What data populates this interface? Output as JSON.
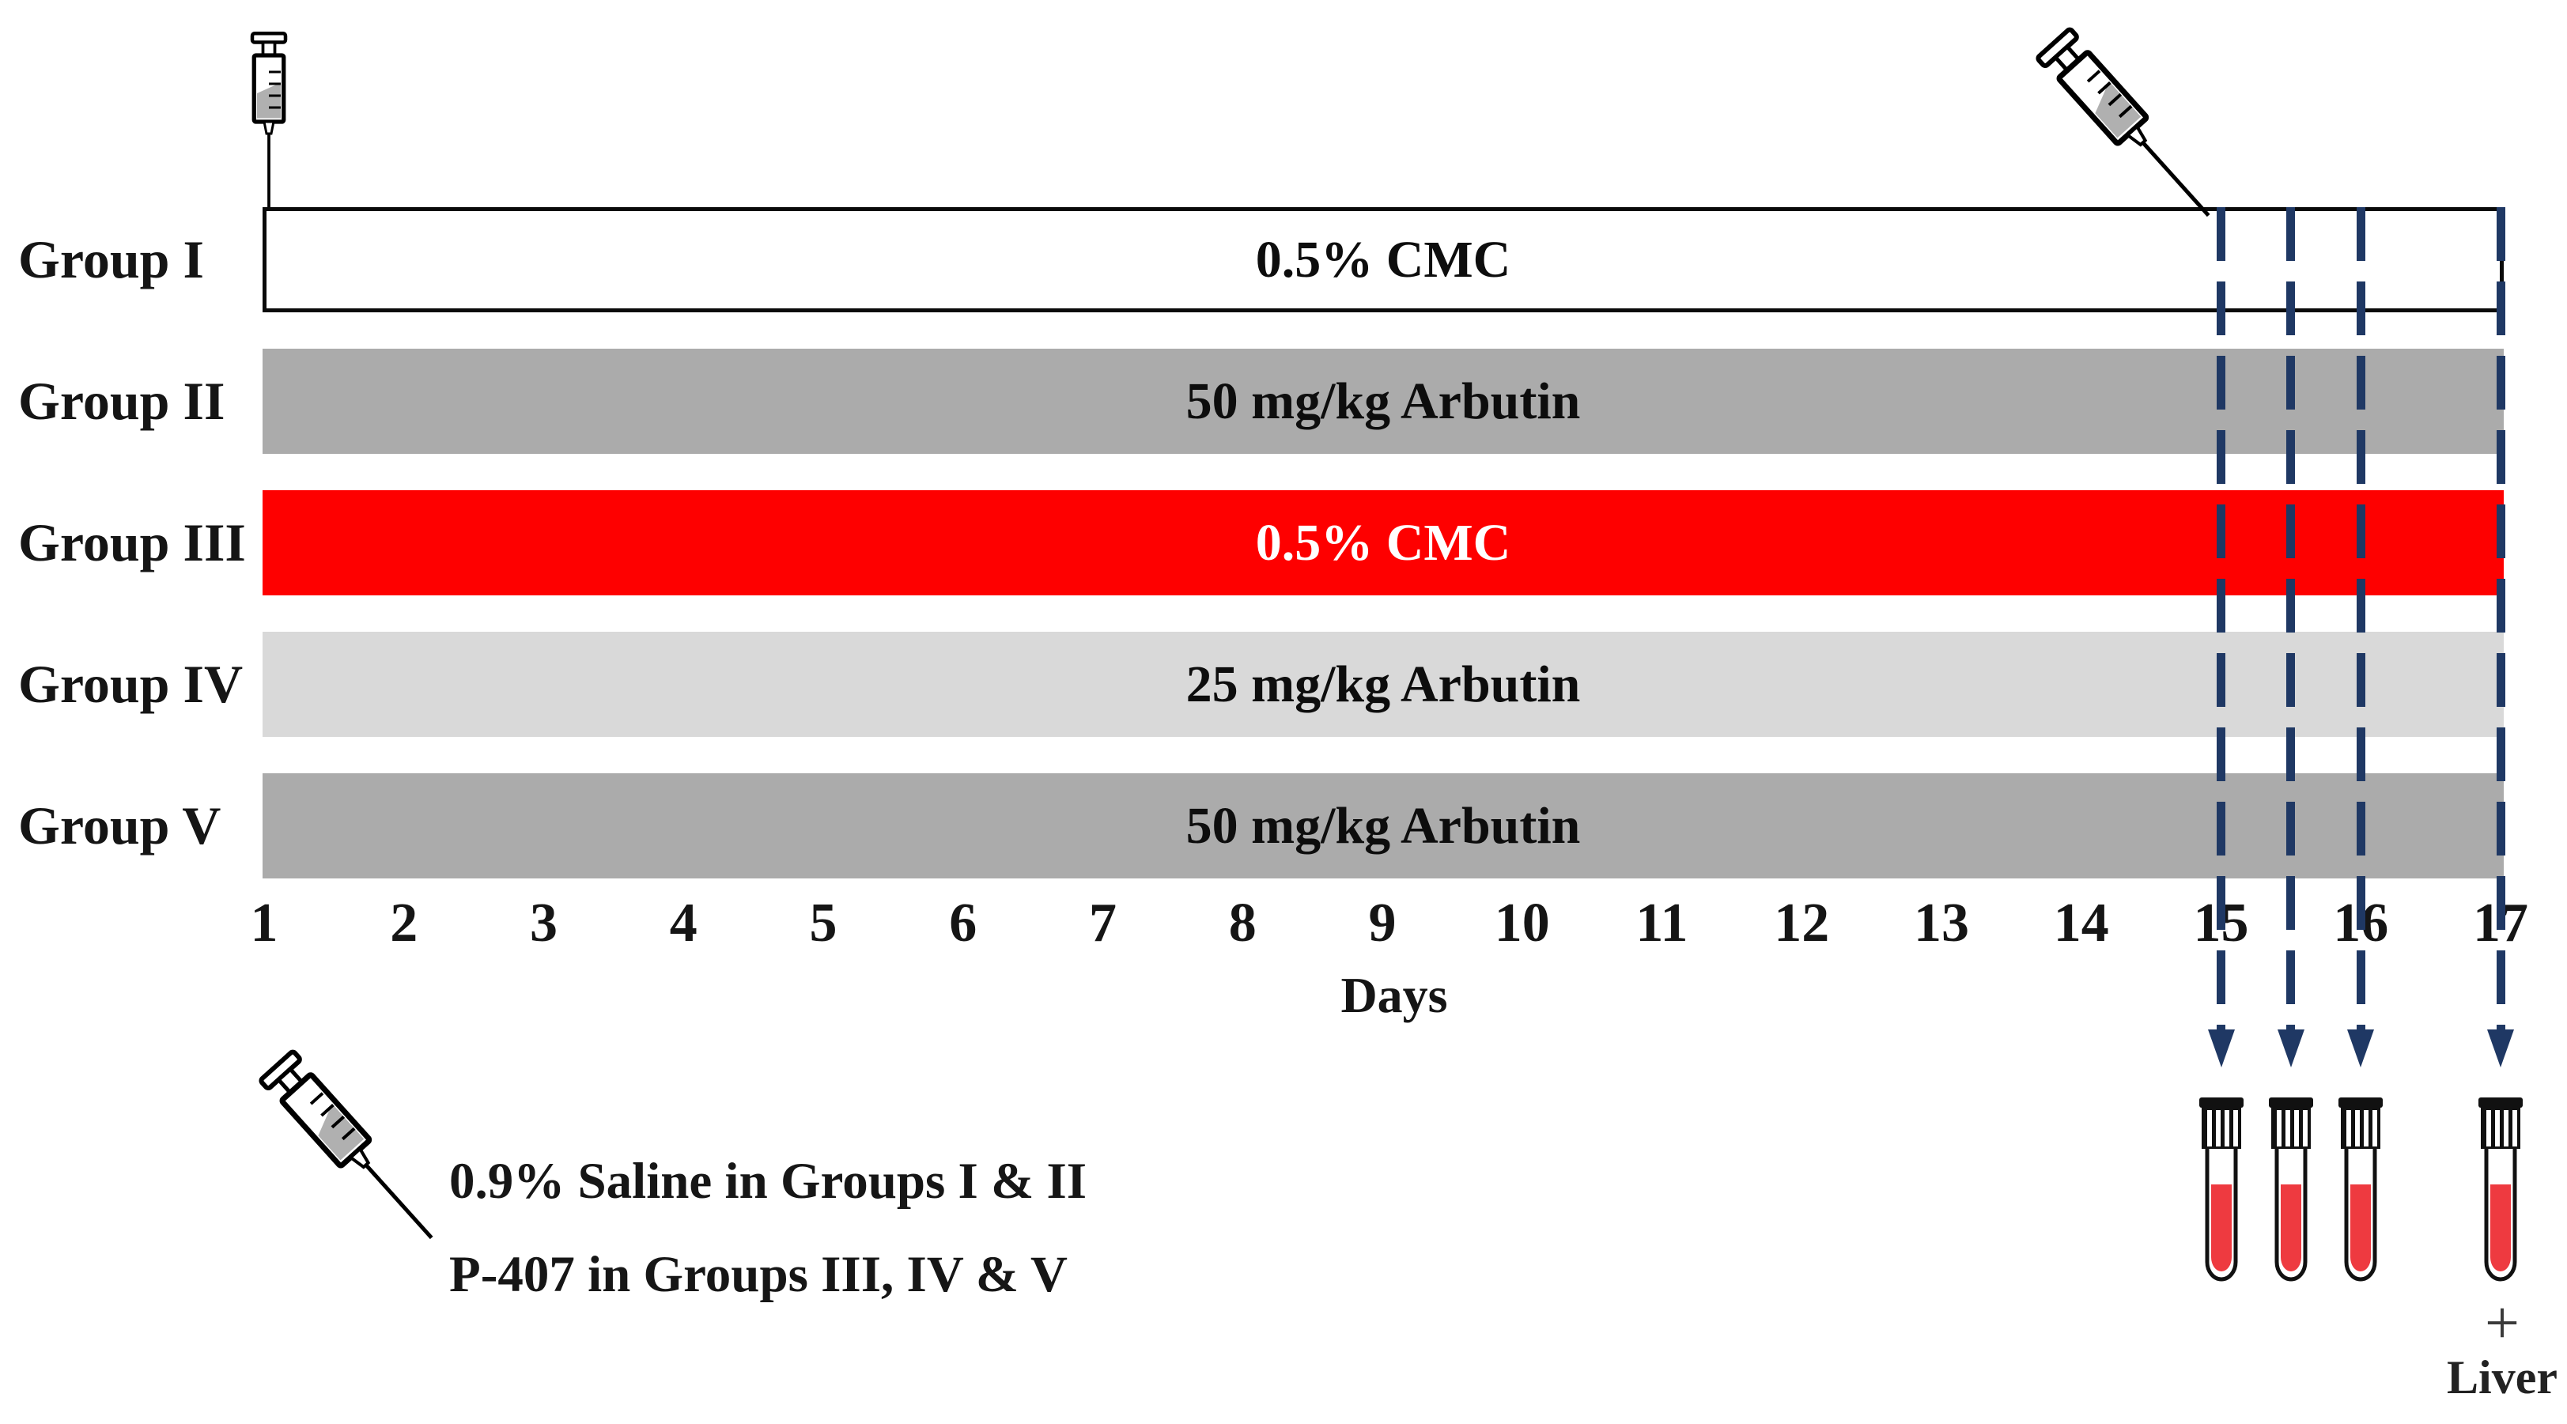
{
  "diagram": {
    "groups": [
      {
        "name": "Group I",
        "treatment": "0.5% CMC",
        "bar_color": "#ffffff",
        "text_color": "#0d0d0d",
        "border_color": "#0a0a0a"
      },
      {
        "name": "Group II",
        "treatment": "50 mg/kg Arbutin",
        "bar_color": "#ababab",
        "text_color": "#0d0d0d",
        "border_color": ""
      },
      {
        "name": "Group III",
        "treatment": "0.5% CMC",
        "bar_color": "#fe0000",
        "text_color": "#ffffff",
        "border_color": ""
      },
      {
        "name": "Group IV",
        "treatment": "25 mg/kg Arbutin",
        "bar_color": "#d9d9d9",
        "text_color": "#0d0d0d",
        "border_color": ""
      },
      {
        "name": "Group V",
        "treatment": "50 mg/kg Arbutin",
        "bar_color": "#ababab",
        "text_color": "#0d0d0d",
        "border_color": ""
      }
    ],
    "axis": {
      "label": "Days",
      "days": [
        "1",
        "2",
        "3",
        "4",
        "5",
        "6",
        "7",
        "8",
        "9",
        "10",
        "11",
        "12",
        "13",
        "14",
        "15",
        "16",
        "17"
      ]
    },
    "sampling": {
      "sample_days": [
        15,
        15.5,
        16,
        17
      ],
      "arrow_color": "#1f3864",
      "tube_fill_color": "#ee3a40",
      "tube_cap_color": "#111111",
      "last_tube_plus": "+",
      "last_tube_label": "Liver"
    },
    "legend": {
      "line1": "0.9% Saline in Groups I & II",
      "line2": "P-407 in Groups III, IV & V"
    },
    "icons": {
      "injection_start": "syringe-icon",
      "injection_day15": "syringe-icon",
      "legend_syringe": "syringe-icon"
    }
  }
}
